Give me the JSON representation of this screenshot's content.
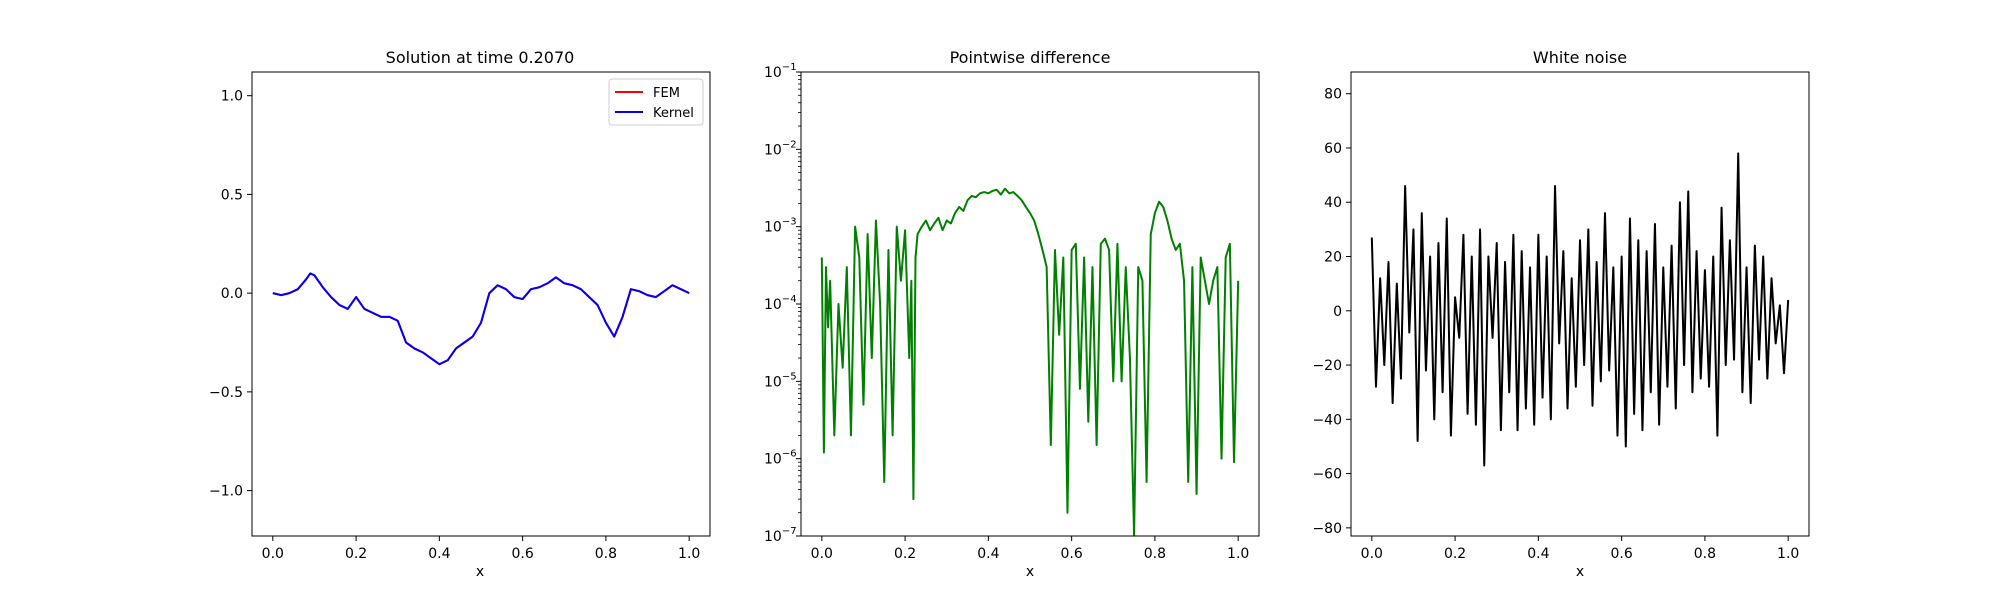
{
  "chart_data": [
    {
      "type": "line",
      "title": "Solution at time 0.2070",
      "xlabel": "x",
      "ylabel": "",
      "xlim": [
        -0.05,
        1.05
      ],
      "ylim": [
        -1.23,
        1.12
      ],
      "xticks": [
        0.0,
        0.2,
        0.4,
        0.6,
        0.8,
        1.0
      ],
      "xtick_labels": [
        "0.0",
        "0.2",
        "0.4",
        "0.6",
        "0.8",
        "1.0"
      ],
      "yticks": [
        -1.0,
        -0.5,
        0.0,
        0.5,
        1.0
      ],
      "ytick_labels": [
        "−1.0",
        "−0.5",
        "0.0",
        "0.5",
        "1.0"
      ],
      "legend": {
        "placement": "top-right",
        "entries": [
          "FEM",
          "Kernel"
        ]
      },
      "grid": false,
      "series": [
        {
          "name": "FEM",
          "color": "#ff0000",
          "x": [
            0.0,
            0.02,
            0.04,
            0.06,
            0.08,
            0.09,
            0.1,
            0.12,
            0.14,
            0.16,
            0.18,
            0.2,
            0.22,
            0.24,
            0.26,
            0.28,
            0.3,
            0.32,
            0.34,
            0.36,
            0.38,
            0.4,
            0.42,
            0.44,
            0.46,
            0.48,
            0.5,
            0.52,
            0.54,
            0.56,
            0.58,
            0.6,
            0.62,
            0.64,
            0.66,
            0.68,
            0.7,
            0.72,
            0.74,
            0.76,
            0.78,
            0.8,
            0.82,
            0.84,
            0.86,
            0.88,
            0.9,
            0.92,
            0.94,
            0.96,
            0.98,
            1.0
          ],
          "y": [
            0.0,
            -0.01,
            0.0,
            0.02,
            0.07,
            0.1,
            0.09,
            0.03,
            -0.02,
            -0.06,
            -0.08,
            -0.02,
            -0.08,
            -0.1,
            -0.12,
            -0.12,
            -0.14,
            -0.25,
            -0.28,
            -0.3,
            -0.33,
            -0.36,
            -0.34,
            -0.28,
            -0.25,
            -0.22,
            -0.15,
            0.0,
            0.04,
            0.02,
            -0.02,
            -0.03,
            0.02,
            0.03,
            0.05,
            0.08,
            0.05,
            0.04,
            0.02,
            -0.02,
            -0.06,
            -0.15,
            -0.22,
            -0.12,
            0.02,
            0.01,
            -0.01,
            -0.02,
            0.01,
            0.04,
            0.02,
            0.0
          ]
        },
        {
          "name": "Kernel",
          "color": "#0000ff",
          "x": [
            0.0,
            0.02,
            0.04,
            0.06,
            0.08,
            0.09,
            0.1,
            0.12,
            0.14,
            0.16,
            0.18,
            0.2,
            0.22,
            0.24,
            0.26,
            0.28,
            0.3,
            0.32,
            0.34,
            0.36,
            0.38,
            0.4,
            0.42,
            0.44,
            0.46,
            0.48,
            0.5,
            0.52,
            0.54,
            0.56,
            0.58,
            0.6,
            0.62,
            0.64,
            0.66,
            0.68,
            0.7,
            0.72,
            0.74,
            0.76,
            0.78,
            0.8,
            0.82,
            0.84,
            0.86,
            0.88,
            0.9,
            0.92,
            0.94,
            0.96,
            0.98,
            1.0
          ],
          "y": [
            0.0,
            -0.01,
            0.0,
            0.02,
            0.07,
            0.1,
            0.09,
            0.03,
            -0.02,
            -0.06,
            -0.08,
            -0.02,
            -0.08,
            -0.1,
            -0.12,
            -0.12,
            -0.14,
            -0.25,
            -0.28,
            -0.3,
            -0.33,
            -0.36,
            -0.34,
            -0.28,
            -0.25,
            -0.22,
            -0.15,
            0.0,
            0.04,
            0.02,
            -0.02,
            -0.03,
            0.02,
            0.03,
            0.05,
            0.08,
            0.05,
            0.04,
            0.02,
            -0.02,
            -0.06,
            -0.15,
            -0.22,
            -0.12,
            0.02,
            0.01,
            -0.01,
            -0.02,
            0.01,
            0.04,
            0.02,
            0.0
          ]
        }
      ]
    },
    {
      "type": "line",
      "title": "Pointwise difference",
      "xlabel": "x",
      "ylabel": "",
      "xlim": [
        -0.05,
        1.05
      ],
      "ylim": [
        1e-07,
        0.1
      ],
      "yscale": "log",
      "xticks": [
        0.0,
        0.2,
        0.4,
        0.6,
        0.8,
        1.0
      ],
      "xtick_labels": [
        "0.0",
        "0.2",
        "0.4",
        "0.6",
        "0.8",
        "1.0"
      ],
      "yticks": [
        1e-07,
        1e-06,
        1e-05,
        0.0001,
        0.001,
        0.01,
        0.1
      ],
      "ytick_exponents": [
        "−7",
        "−6",
        "−5",
        "−4",
        "−3",
        "−2",
        "−1"
      ],
      "ytick_base": "10",
      "grid": false,
      "series": [
        {
          "color": "#008000",
          "x": [
            0.0,
            0.005,
            0.01,
            0.015,
            0.02,
            0.03,
            0.04,
            0.05,
            0.06,
            0.07,
            0.08,
            0.09,
            0.1,
            0.11,
            0.12,
            0.13,
            0.14,
            0.15,
            0.16,
            0.17,
            0.18,
            0.19,
            0.2,
            0.21,
            0.215,
            0.22,
            0.225,
            0.23,
            0.24,
            0.25,
            0.26,
            0.27,
            0.28,
            0.29,
            0.3,
            0.31,
            0.32,
            0.33,
            0.34,
            0.35,
            0.36,
            0.37,
            0.38,
            0.39,
            0.4,
            0.41,
            0.42,
            0.43,
            0.44,
            0.45,
            0.46,
            0.47,
            0.48,
            0.49,
            0.5,
            0.51,
            0.52,
            0.53,
            0.54,
            0.55,
            0.56,
            0.57,
            0.58,
            0.59,
            0.6,
            0.61,
            0.62,
            0.63,
            0.64,
            0.65,
            0.66,
            0.67,
            0.68,
            0.69,
            0.7,
            0.71,
            0.72,
            0.73,
            0.74,
            0.75,
            0.76,
            0.77,
            0.78,
            0.79,
            0.8,
            0.81,
            0.82,
            0.83,
            0.84,
            0.85,
            0.86,
            0.87,
            0.88,
            0.89,
            0.9,
            0.91,
            0.92,
            0.93,
            0.94,
            0.95,
            0.96,
            0.97,
            0.98,
            0.99,
            1.0
          ],
          "y": [
            0.0004,
            1.2e-06,
            0.0003,
            5e-05,
            0.0002,
            2e-06,
            0.0001,
            1.5e-05,
            0.0003,
            2e-06,
            0.001,
            0.0004,
            5e-06,
            0.0008,
            2e-05,
            0.0012,
            0.0001,
            5e-07,
            0.0005,
            2e-06,
            0.001,
            0.0002,
            0.0009,
            2e-05,
            0.0002,
            3e-07,
            0.0004,
            0.0008,
            0.001,
            0.0012,
            0.0009,
            0.0011,
            0.0013,
            0.0009,
            0.0012,
            0.0011,
            0.0015,
            0.0018,
            0.0016,
            0.0022,
            0.0025,
            0.0024,
            0.0027,
            0.0028,
            0.0027,
            0.0029,
            0.003,
            0.0026,
            0.0031,
            0.0027,
            0.0028,
            0.0025,
            0.0022,
            0.0018,
            0.0015,
            0.0012,
            0.0008,
            0.0005,
            0.0003,
            1.5e-06,
            0.0005,
            4e-05,
            0.0004,
            2e-07,
            0.0005,
            0.0006,
            8e-06,
            0.0004,
            3e-06,
            0.0003,
            1.5e-06,
            0.0006,
            0.0007,
            0.0005,
            1e-05,
            0.0006,
            1e-05,
            0.0003,
            2e-05,
            1e-07,
            0.0003,
            0.0002,
            5e-07,
            0.0008,
            0.0015,
            0.0021,
            0.0018,
            0.0012,
            0.0007,
            0.0005,
            0.0006,
            0.0002,
            5e-07,
            0.0003,
            3.5e-07,
            0.0004,
            0.0002,
            0.0001,
            0.0002,
            0.0003,
            1e-06,
            0.0004,
            0.0006,
            9e-07,
            0.0002
          ]
        }
      ]
    },
    {
      "type": "line",
      "title": "White noise",
      "xlabel": "x",
      "ylabel": "",
      "xlim": [
        -0.05,
        1.05
      ],
      "ylim": [
        -83,
        88
      ],
      "xticks": [
        0.0,
        0.2,
        0.4,
        0.6,
        0.8,
        1.0
      ],
      "xtick_labels": [
        "0.0",
        "0.2",
        "0.4",
        "0.6",
        "0.8",
        "1.0"
      ],
      "yticks": [
        -80,
        -60,
        -40,
        -20,
        0,
        20,
        40,
        60,
        80
      ],
      "ytick_labels": [
        "−80",
        "−60",
        "−40",
        "−20",
        "0",
        "20",
        "40",
        "60",
        "80"
      ],
      "grid": false,
      "series": [
        {
          "color": "#000000",
          "x": [
            0.0,
            0.01,
            0.02,
            0.03,
            0.04,
            0.05,
            0.06,
            0.07,
            0.08,
            0.09,
            0.1,
            0.11,
            0.12,
            0.13,
            0.14,
            0.15,
            0.16,
            0.17,
            0.18,
            0.19,
            0.2,
            0.21,
            0.22,
            0.23,
            0.24,
            0.25,
            0.26,
            0.27,
            0.28,
            0.29,
            0.3,
            0.31,
            0.32,
            0.33,
            0.34,
            0.35,
            0.36,
            0.37,
            0.38,
            0.39,
            0.4,
            0.41,
            0.42,
            0.43,
            0.44,
            0.45,
            0.46,
            0.47,
            0.48,
            0.49,
            0.5,
            0.51,
            0.52,
            0.53,
            0.54,
            0.55,
            0.56,
            0.57,
            0.58,
            0.59,
            0.6,
            0.61,
            0.62,
            0.63,
            0.64,
            0.65,
            0.66,
            0.67,
            0.68,
            0.69,
            0.7,
            0.71,
            0.72,
            0.73,
            0.74,
            0.75,
            0.76,
            0.77,
            0.78,
            0.79,
            0.8,
            0.81,
            0.82,
            0.83,
            0.84,
            0.85,
            0.86,
            0.87,
            0.88,
            0.89,
            0.9,
            0.91,
            0.92,
            0.93,
            0.94,
            0.95,
            0.96,
            0.97,
            0.98,
            0.99,
            1.0
          ],
          "y": [
            27,
            -28,
            12,
            -20,
            18,
            -34,
            10,
            -25,
            46,
            -8,
            30,
            -48,
            36,
            -22,
            20,
            -40,
            25,
            -30,
            34,
            -46,
            5,
            -10,
            28,
            -38,
            20,
            -42,
            30,
            -57,
            20,
            -10,
            25,
            -44,
            18,
            -30,
            28,
            -44,
            22,
            -36,
            16,
            -42,
            28,
            -32,
            20,
            -40,
            46,
            -12,
            22,
            -36,
            12,
            -28,
            26,
            -20,
            30,
            -35,
            18,
            -26,
            36,
            -22,
            16,
            -46,
            20,
            -50,
            34,
            -38,
            26,
            -44,
            22,
            -30,
            32,
            -42,
            16,
            -28,
            24,
            -36,
            40,
            -20,
            44,
            -30,
            22,
            -25,
            15,
            -28,
            20,
            -46,
            38,
            -20,
            26,
            -18,
            58,
            -30,
            16,
            -34,
            24,
            -18,
            20,
            -25,
            12,
            -12,
            2,
            -23,
            4
          ]
        }
      ]
    }
  ]
}
